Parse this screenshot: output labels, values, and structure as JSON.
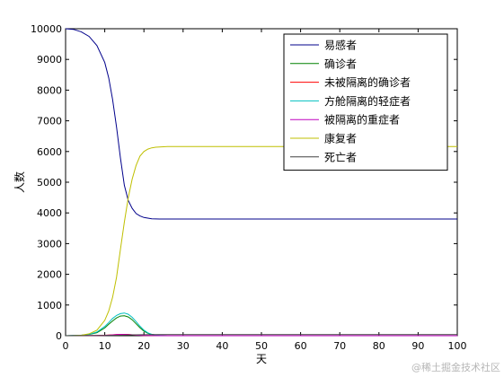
{
  "chart_data": {
    "type": "line",
    "title": "",
    "xlabel": "天",
    "ylabel": "人数",
    "xlim": [
      0,
      100
    ],
    "ylim": [
      0,
      10000
    ],
    "xticks": [
      0,
      10,
      20,
      30,
      40,
      50,
      60,
      70,
      80,
      90,
      100
    ],
    "yticks": [
      0,
      1000,
      2000,
      3000,
      4000,
      5000,
      6000,
      7000,
      8000,
      9000,
      10000
    ],
    "legend_position": "top-right",
    "grid": false,
    "series": [
      {
        "name": "易感者",
        "color": "#00008b",
        "x": [
          0,
          2,
          4,
          6,
          8,
          10,
          11,
          12,
          13,
          14,
          15,
          16,
          17,
          18,
          19,
          20,
          22,
          24,
          26,
          30,
          40,
          60,
          80,
          100
        ],
        "y": [
          10000,
          9980,
          9900,
          9750,
          9450,
          8900,
          8400,
          7700,
          6800,
          5800,
          4900,
          4400,
          4150,
          3980,
          3900,
          3850,
          3810,
          3800,
          3800,
          3800,
          3800,
          3800,
          3800,
          3800
        ]
      },
      {
        "name": "确诊者",
        "color": "#008000",
        "x": [
          0,
          4,
          6,
          8,
          10,
          11,
          12,
          13,
          14,
          15,
          16,
          17,
          18,
          19,
          20,
          21,
          22,
          24,
          26,
          30,
          40,
          60,
          80,
          100
        ],
        "y": [
          0,
          15,
          40,
          100,
          250,
          370,
          480,
          580,
          640,
          650,
          610,
          520,
          390,
          260,
          150,
          80,
          40,
          10,
          0,
          0,
          0,
          0,
          0,
          0
        ]
      },
      {
        "name": "未被隔离的确诊者",
        "color": "#ff0000",
        "x": [
          0,
          8,
          10,
          12,
          13,
          14,
          15,
          16,
          17,
          18,
          20,
          24,
          30,
          40,
          60,
          80,
          100
        ],
        "y": [
          0,
          5,
          15,
          30,
          40,
          45,
          45,
          40,
          30,
          20,
          8,
          0,
          0,
          0,
          0,
          0,
          0
        ]
      },
      {
        "name": "方舱隔离的轻症者",
        "color": "#00bfbf",
        "x": [
          0,
          4,
          6,
          8,
          10,
          11,
          12,
          13,
          14,
          15,
          16,
          17,
          18,
          19,
          20,
          21,
          22,
          24,
          26,
          30,
          40,
          60,
          80,
          100
        ],
        "y": [
          0,
          15,
          45,
          120,
          300,
          430,
          560,
          660,
          720,
          740,
          700,
          600,
          460,
          310,
          180,
          95,
          45,
          12,
          0,
          0,
          0,
          0,
          0,
          0
        ]
      },
      {
        "name": "被隔离的重症者",
        "color": "#bf00bf",
        "x": [
          0,
          8,
          10,
          12,
          13,
          14,
          15,
          16,
          17,
          18,
          20,
          24,
          30,
          40,
          60,
          80,
          100
        ],
        "y": [
          0,
          5,
          12,
          25,
          35,
          40,
          40,
          35,
          28,
          18,
          6,
          0,
          0,
          0,
          0,
          0,
          0
        ]
      },
      {
        "name": "康复者",
        "color": "#bfbf00",
        "x": [
          0,
          2,
          4,
          6,
          8,
          10,
          11,
          12,
          13,
          14,
          15,
          16,
          17,
          18,
          19,
          20,
          21,
          22,
          23,
          24,
          26,
          30,
          40,
          60,
          80,
          100
        ],
        "y": [
          0,
          2,
          15,
          60,
          180,
          500,
          800,
          1250,
          1900,
          2800,
          3700,
          4500,
          5100,
          5550,
          5850,
          6000,
          6080,
          6120,
          6140,
          6150,
          6160,
          6160,
          6160,
          6160,
          6160,
          6160
        ]
      },
      {
        "name": "死亡者",
        "color": "#404040",
        "x": [
          0,
          10,
          14,
          16,
          18,
          20,
          24,
          30,
          40,
          60,
          80,
          100
        ],
        "y": [
          0,
          5,
          15,
          22,
          28,
          32,
          35,
          36,
          36,
          36,
          36,
          36
        ]
      }
    ]
  },
  "watermark": "@稀土掘金技术社区"
}
